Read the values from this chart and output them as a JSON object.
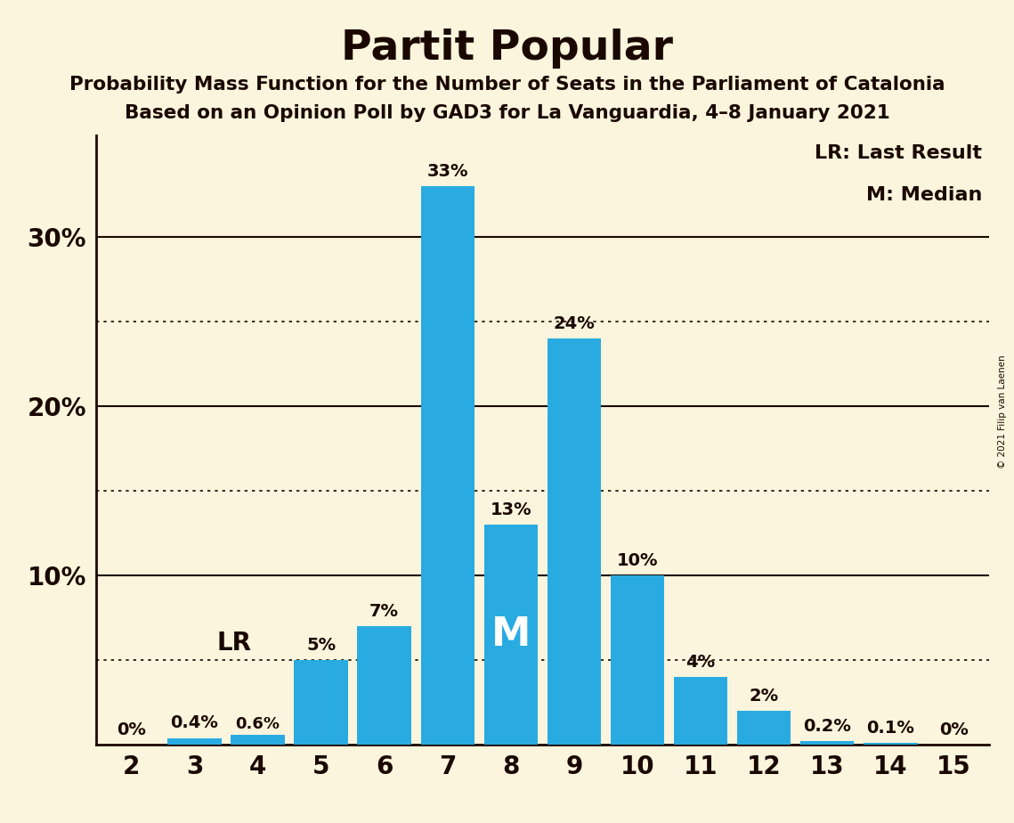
{
  "title": "Partit Popular",
  "subtitle1": "Probability Mass Function for the Number of Seats in the Parliament of Catalonia",
  "subtitle2": "Based on an Opinion Poll by GAD3 for La Vanguardia, 4–8 January 2021",
  "copyright": "© 2021 Filip van Laenen",
  "seats": [
    2,
    3,
    4,
    5,
    6,
    7,
    8,
    9,
    10,
    11,
    12,
    13,
    14,
    15
  ],
  "values": [
    0.0,
    0.4,
    0.6,
    5.0,
    7.0,
    33.0,
    13.0,
    24.0,
    10.0,
    4.0,
    2.0,
    0.2,
    0.1,
    0.0
  ],
  "labels": [
    "0%",
    "0.4%",
    "0.6%",
    "5%",
    "7%",
    "33%",
    "13%",
    "24%",
    "10%",
    "4%",
    "2%",
    "0.2%",
    "0.1%",
    "0%"
  ],
  "bar_color": "#29ABE2",
  "background_color": "#FAF5DC",
  "text_color": "#1a0800",
  "lr_seat": 4,
  "median_seat": 8,
  "ylim": [
    0,
    36
  ],
  "yticks": [
    10,
    20,
    30
  ],
  "ytick_labels": [
    "10%",
    "20%",
    "30%"
  ],
  "solid_lines": [
    10,
    20,
    30
  ],
  "dotted_lines": [
    5,
    15,
    25
  ],
  "legend_lr": "LR: Last Result",
  "legend_m": "M: Median"
}
